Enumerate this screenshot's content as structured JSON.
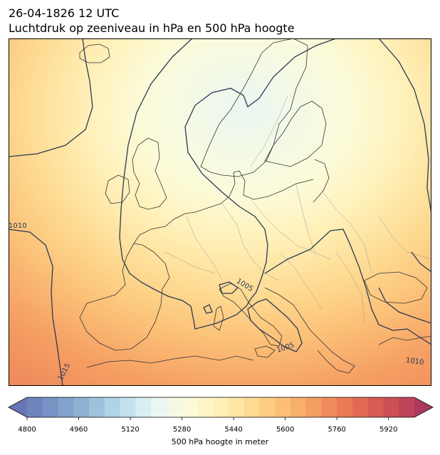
{
  "header": {
    "datetime": "26-04-1826 12 UTC",
    "subtitle": "Luchtdruk op zeeniveau in hPa en 500 hPa hoogte"
  },
  "colorbar": {
    "label": "500 hPa hoogte in meter",
    "min": 4800,
    "max": 6000,
    "step": 40,
    "ticks": [
      "4800",
      "4960",
      "5120",
      "5280",
      "5440",
      "5600",
      "5760",
      "5920"
    ],
    "colors": [
      "#6a75b6",
      "#6e84bd",
      "#7693c4",
      "#81a3cb",
      "#8eb2d3",
      "#9fc2dc",
      "#b0d3e6",
      "#c3e2ee",
      "#d7eef4",
      "#eaf6f2",
      "#f4f9e6",
      "#fbfbd9",
      "#fff6c8",
      "#fff0b8",
      "#ffe6a5",
      "#fedb92",
      "#fccd82",
      "#fbbf76",
      "#f8af6b",
      "#f59e63",
      "#f08c5c",
      "#ea7a56",
      "#e26a52",
      "#d85c52",
      "#cc5055",
      "#bd4459",
      "#ad395d"
    ]
  },
  "isobar_labels": [
    "1015",
    "1005",
    "1005",
    "1010",
    "1010"
  ],
  "colors": {
    "isobar": "#2b3a55",
    "coast": "#333333",
    "border": "#9a9a9a"
  }
}
